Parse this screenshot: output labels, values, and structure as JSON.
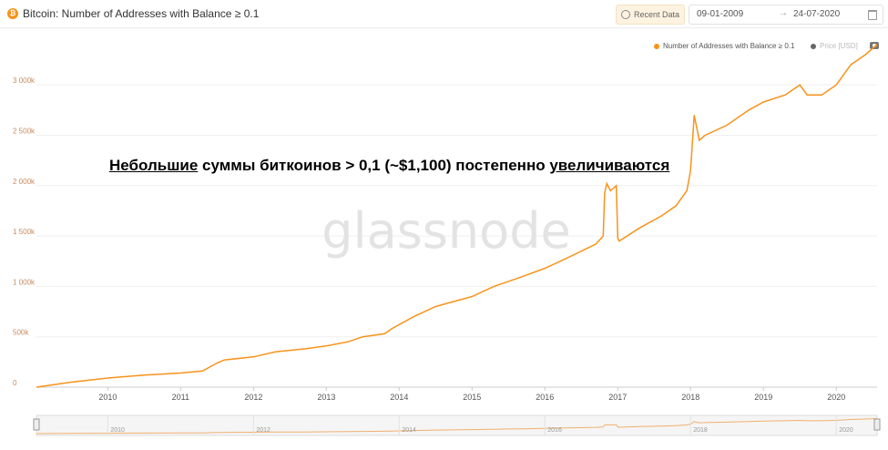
{
  "header": {
    "title": "Bitcoin: Number of Addresses with Balance ≥ 0.1",
    "coin_icon": "bitcoin-icon",
    "recent_data_label": "Recent Data",
    "date_from": "09-01-2009",
    "date_to": "24-07-2020"
  },
  "annotation": {
    "w1": "Небольшие",
    "w2": " суммы биткоинов > 0,1 (~$1,100) постепенно ",
    "w3": "увеличиваются"
  },
  "watermark": "glassnode",
  "colors": {
    "series": "#f7931a",
    "grid": "#efefef",
    "axis_text": "#c98a5a"
  },
  "chart_data": {
    "type": "line",
    "title": "Bitcoin: Number of Addresses with Balance ≥ 0.1",
    "xlabel": "",
    "ylabel": "",
    "ylim": [
      0,
      3300000
    ],
    "xlim": [
      2009.02,
      2020.56
    ],
    "y_ticks": [
      {
        "value": 0,
        "label": "0"
      },
      {
        "value": 500000,
        "label": "500k"
      },
      {
        "value": 1000000,
        "label": "1 000k"
      },
      {
        "value": 1500000,
        "label": "1 500k"
      },
      {
        "value": 2000000,
        "label": "2 000k"
      },
      {
        "value": 2500000,
        "label": "2 500k"
      },
      {
        "value": 3000000,
        "label": "3 000k"
      }
    ],
    "x_ticks": [
      {
        "value": 2010,
        "label": "2010"
      },
      {
        "value": 2011,
        "label": "2011"
      },
      {
        "value": 2012,
        "label": "2012"
      },
      {
        "value": 2013,
        "label": "2013"
      },
      {
        "value": 2014,
        "label": "2014"
      },
      {
        "value": 2015,
        "label": "2015"
      },
      {
        "value": 2016,
        "label": "2016"
      },
      {
        "value": 2017,
        "label": "2017"
      },
      {
        "value": 2018,
        "label": "2018"
      },
      {
        "value": 2019,
        "label": "2019"
      },
      {
        "value": 2020,
        "label": "2020"
      }
    ],
    "navigator_ticks": [
      "2010",
      "2012",
      "2014",
      "2016",
      "2018",
      "2020"
    ],
    "legend": "top-right",
    "grid": true,
    "series": [
      {
        "name": "Number of Addresses with Balance ≥ 0.1",
        "color": "#f7931a",
        "x": [
          2009.02,
          2009.5,
          2010.0,
          2010.5,
          2011.0,
          2011.3,
          2011.5,
          2011.6,
          2012.0,
          2012.3,
          2012.7,
          2013.0,
          2013.3,
          2013.5,
          2013.8,
          2013.9,
          2014.0,
          2014.2,
          2014.5,
          2015.0,
          2015.3,
          2015.5,
          2015.7,
          2016.0,
          2016.3,
          2016.5,
          2016.7,
          2016.8,
          2016.82,
          2016.85,
          2016.9,
          2016.98,
          2017.0,
          2017.02,
          2017.3,
          2017.6,
          2017.8,
          2017.95,
          2018.0,
          2018.05,
          2018.12,
          2018.2,
          2018.5,
          2018.8,
          2019.0,
          2019.3,
          2019.5,
          2019.6,
          2019.8,
          2020.0,
          2020.2,
          2020.4,
          2020.56
        ],
        "values": [
          0,
          50000,
          90000,
          120000,
          140000,
          160000,
          240000,
          270000,
          300000,
          350000,
          380000,
          410000,
          450000,
          500000,
          530000,
          580000,
          620000,
          700000,
          800000,
          900000,
          1000000,
          1050000,
          1100000,
          1180000,
          1280000,
          1350000,
          1420000,
          1500000,
          1930000,
          2020000,
          1950000,
          2000000,
          1480000,
          1450000,
          1580000,
          1700000,
          1800000,
          1950000,
          2150000,
          2700000,
          2450000,
          2500000,
          2600000,
          2750000,
          2830000,
          2900000,
          3000000,
          2900000,
          2900000,
          3000000,
          3200000,
          3300000,
          3400000
        ]
      }
    ],
    "series_secondary": {
      "name": "Price [USD]",
      "color": "#666666"
    }
  }
}
